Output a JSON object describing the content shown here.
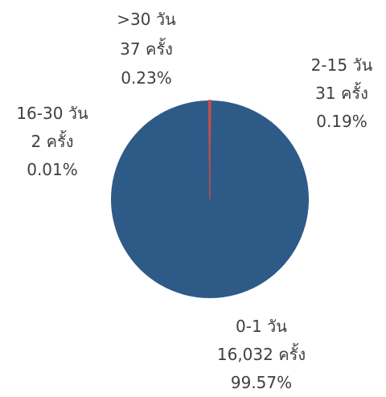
{
  "chart_data": {
    "type": "pie",
    "title": "",
    "categories": [
      "0-1 วัน",
      "2-15 วัน",
      "16-30 วัน",
      ">30 วัน"
    ],
    "counts_text": [
      "16,032 ครั้ง",
      "31 ครั้ง",
      "2 ครั้ง",
      "37 ครั้ง"
    ],
    "percent_text": [
      "99.57%",
      "0.19%",
      "0.01%",
      "0.23%"
    ],
    "values": [
      16032,
      31,
      2,
      37
    ],
    "percents": [
      99.57,
      0.19,
      0.01,
      0.23
    ],
    "colors": {
      "main_slice": "#2e5a87",
      "small_slices": "#c0504d",
      "label_text": "#404040"
    },
    "legend": "none"
  }
}
